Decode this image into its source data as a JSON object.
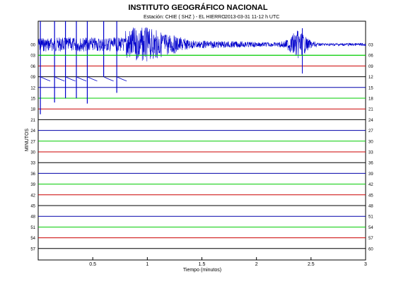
{
  "header": {
    "title": "INSTITUTO GEOGRÁFICO NACIONAL",
    "station": "Estación:  CHIE ( SHZ ) - EL HIERRO",
    "datetime": "2013-03-31   11-12 h UTC"
  },
  "chart_data": {
    "type": "line",
    "title": "INSTITUTO GEOGRÁFICO NACIONAL",
    "xlabel": "Tiempo (minutos)",
    "ylabel": "MINUTOS",
    "xlim": [
      0,
      3
    ],
    "x_ticks": [
      0.5,
      1,
      1.5,
      2,
      2.5,
      3
    ],
    "x_tick_labels": [
      "0.5",
      "1",
      "1.5",
      "2",
      "2.5",
      "3"
    ],
    "left_labels": [
      "00",
      "03",
      "06",
      "09",
      "12",
      "15",
      "18",
      "21",
      "24",
      "27",
      "30",
      "33",
      "36",
      "39",
      "42",
      "45",
      "48",
      "51",
      "54",
      "57"
    ],
    "right_labels": [
      "03",
      "06",
      "09",
      "12",
      "15",
      "18",
      "21",
      "24",
      "27",
      "30",
      "33",
      "36",
      "39",
      "42",
      "45",
      "48",
      "51",
      "54",
      "57",
      "60"
    ],
    "trace_colors": [
      "#0000aa",
      "#00cc00",
      "#cc0000",
      "#000000"
    ],
    "grid": false,
    "events": [
      {
        "x": 0.02,
        "depth_rows": 6.5
      },
      {
        "x": 0.15,
        "depth_rows": 5.4
      },
      {
        "x": 0.25,
        "depth_rows": 5.0
      },
      {
        "x": 0.35,
        "depth_rows": 5.0
      },
      {
        "x": 0.45,
        "depth_rows": 5.5
      },
      {
        "x": 0.6,
        "depth_rows": 3.0
      },
      {
        "x": 0.72,
        "depth_rows": 4.5
      }
    ]
  }
}
